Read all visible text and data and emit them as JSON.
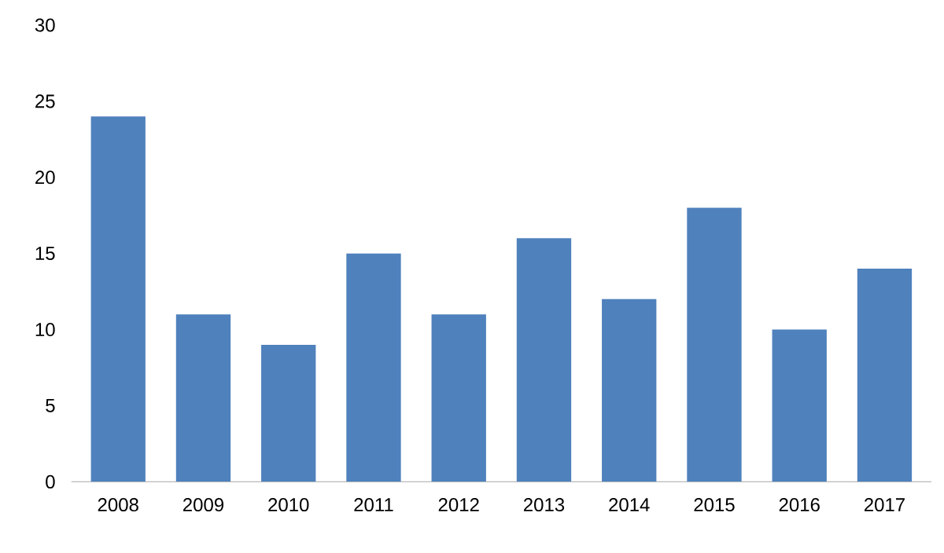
{
  "chart_data": {
    "type": "bar",
    "categories": [
      "2008",
      "2009",
      "2010",
      "2011",
      "2012",
      "2013",
      "2014",
      "2015",
      "2016",
      "2017"
    ],
    "values": [
      24,
      11,
      9,
      15,
      11,
      16,
      12,
      18,
      10,
      14
    ],
    "color": "#4f81bd",
    "ylim": [
      0,
      30
    ],
    "yticks": [
      0,
      5,
      10,
      15,
      20,
      25,
      30
    ]
  }
}
